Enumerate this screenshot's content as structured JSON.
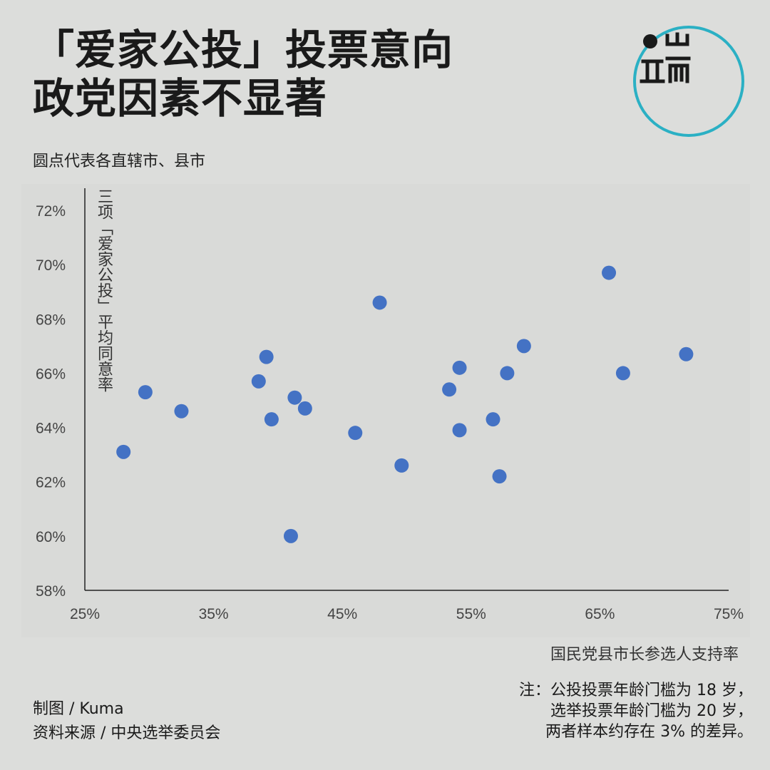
{
  "title_lines": [
    "「爱家公投」投票意向",
    "政党因素不显著"
  ],
  "subtitle": "圆点代表各直辖市、县市",
  "logo": {
    "name": "端",
    "color": "#2bb0c4"
  },
  "credits": {
    "author": "制图 / Kuma",
    "source": "资料来源 / 中央选举委员会"
  },
  "note": [
    "注：公投投票年龄门槛为 18 岁，",
    "选举投票年龄门槛为 20 岁，",
    "两者样本约存在 3% 的差异。"
  ],
  "chart_data": {
    "type": "scatter",
    "xlabel": "国民党县市长参选人支持率",
    "ylabel": "三项「爱家公投」平均同意率",
    "xlim": [
      25,
      75
    ],
    "ylim": [
      58,
      72
    ],
    "xticks": [
      "25%",
      "35%",
      "45%",
      "55%",
      "65%",
      "75%"
    ],
    "xtick_values": [
      25,
      35,
      45,
      55,
      65,
      75
    ],
    "yticks": [
      "58%",
      "60%",
      "62%",
      "64%",
      "66%",
      "68%",
      "70%",
      "72%"
    ],
    "ytick_values": [
      58,
      60,
      62,
      64,
      66,
      68,
      70,
      72
    ],
    "point_color": "#4472c4",
    "points": [
      [
        28.0,
        63.1
      ],
      [
        29.7,
        65.3
      ],
      [
        32.5,
        64.6
      ],
      [
        38.5,
        65.7
      ],
      [
        39.1,
        66.6
      ],
      [
        39.5,
        64.3
      ],
      [
        41.0,
        60.0
      ],
      [
        41.3,
        65.1
      ],
      [
        42.1,
        64.7
      ],
      [
        46.0,
        63.8
      ],
      [
        47.9,
        68.6
      ],
      [
        49.6,
        62.6
      ],
      [
        53.3,
        65.4
      ],
      [
        54.1,
        66.2
      ],
      [
        54.1,
        63.9
      ],
      [
        56.7,
        64.3
      ],
      [
        57.2,
        62.2
      ],
      [
        57.8,
        66.0
      ],
      [
        59.1,
        67.0
      ],
      [
        65.7,
        69.7
      ],
      [
        66.8,
        66.0
      ],
      [
        71.7,
        66.7
      ]
    ],
    "grid": false,
    "legend": "none"
  }
}
